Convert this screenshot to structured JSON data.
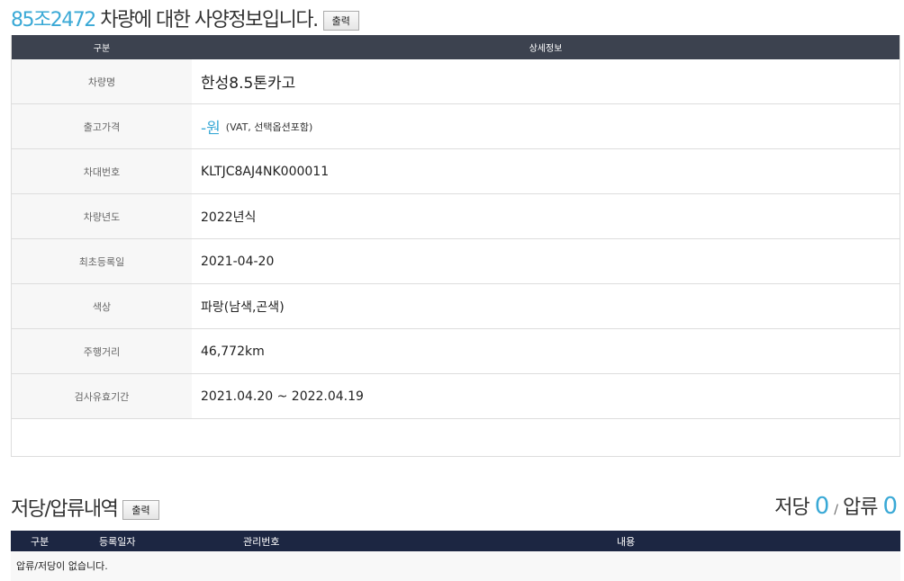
{
  "header": {
    "plate": "85조2472",
    "title_suffix": "차량에 대한 사양정보입니다.",
    "print_label": "출력"
  },
  "spec_table": {
    "col_headers": [
      "구분",
      "상세정보"
    ],
    "rows": [
      {
        "label": "차량명",
        "value": "한성8.5톤카고"
      },
      {
        "label": "출고가격",
        "value": "-원",
        "note": "(VAT, 선택옵션포함)"
      },
      {
        "label": "차대번호",
        "value": "KLTJC8AJ4NK000011"
      },
      {
        "label": "차량년도",
        "value": "2022년식"
      },
      {
        "label": "최초등록일",
        "value": "2021-04-20"
      },
      {
        "label": "색상",
        "value": "파랑(남색,곤색)"
      },
      {
        "label": "주행거리",
        "value": "46,772km"
      },
      {
        "label": "검사유효기간",
        "value": "2021.04.20 ~ 2022.04.19"
      }
    ]
  },
  "lien": {
    "title": "저당/압류내역",
    "print_label": "출력",
    "mortgage_label": "저당",
    "mortgage_count": "0",
    "separator": "/",
    "seizure_label": "압류",
    "seizure_count": "0",
    "col_headers": [
      "구분",
      "등록일자",
      "관리번호",
      "내용"
    ],
    "empty_text": "압류/저당이 없습니다."
  },
  "colors": {
    "accent": "#3aa9d6",
    "spec_header": "#3c424f",
    "lien_header": "#1c2642"
  }
}
